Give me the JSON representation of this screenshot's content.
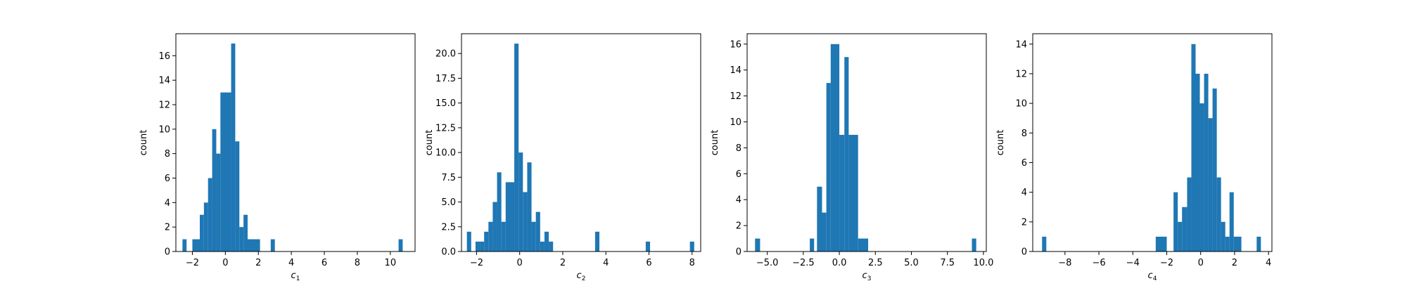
{
  "chart_data": [
    {
      "type": "bar",
      "xlabel_base": "c",
      "xlabel_sub": "1",
      "ylabel": "count",
      "xlim": [
        -3.0,
        11.5
      ],
      "ylim": [
        0,
        17.8
      ],
      "x_ticks": [
        -2,
        0,
        2,
        4,
        6,
        8,
        10
      ],
      "x_tick_labels": [
        "−2",
        "0",
        "2",
        "4",
        "6",
        "8",
        "10"
      ],
      "y_ticks": [
        0,
        2,
        4,
        6,
        8,
        10,
        12,
        14,
        16
      ],
      "y_tick_labels": [
        "0",
        "2",
        "4",
        "6",
        "8",
        "10",
        "12",
        "14",
        "16"
      ],
      "color": "#1f77b4",
      "bins": [
        {
          "x0": -2.6,
          "x1": -2.35,
          "count": 1
        },
        {
          "x0": -2.0,
          "x1": -1.55,
          "count": 1
        },
        {
          "x0": -1.55,
          "x1": -1.3,
          "count": 3
        },
        {
          "x0": -1.3,
          "x1": -1.05,
          "count": 4
        },
        {
          "x0": -1.05,
          "x1": -0.8,
          "count": 6
        },
        {
          "x0": -0.8,
          "x1": -0.55,
          "count": 10
        },
        {
          "x0": -0.55,
          "x1": -0.3,
          "count": 8
        },
        {
          "x0": -0.3,
          "x1": 0.35,
          "count": 13
        },
        {
          "x0": 0.35,
          "x1": 0.6,
          "count": 17
        },
        {
          "x0": 0.6,
          "x1": 0.85,
          "count": 9
        },
        {
          "x0": 0.85,
          "x1": 1.1,
          "count": 2
        },
        {
          "x0": 1.1,
          "x1": 1.35,
          "count": 3
        },
        {
          "x0": 1.35,
          "x1": 2.1,
          "count": 1
        },
        {
          "x0": 2.75,
          "x1": 3.0,
          "count": 1
        },
        {
          "x0": 10.5,
          "x1": 10.75,
          "count": 1
        }
      ]
    },
    {
      "type": "bar",
      "xlabel_base": "c",
      "xlabel_sub": "2",
      "ylabel": "count",
      "xlim": [
        -2.7,
        8.4
      ],
      "ylim": [
        0,
        22
      ],
      "x_ticks": [
        -2,
        0,
        2,
        4,
        6,
        8
      ],
      "x_tick_labels": [
        "−2",
        "0",
        "2",
        "4",
        "6",
        "8"
      ],
      "y_ticks": [
        0,
        2.5,
        5.0,
        7.5,
        10.0,
        12.5,
        15.0,
        17.5,
        20.0
      ],
      "y_tick_labels": [
        "0.0",
        "2.5",
        "5.0",
        "7.5",
        "10.0",
        "12.5",
        "15.0",
        "17.5",
        "20.0"
      ],
      "color": "#1f77b4",
      "bins": [
        {
          "x0": -2.45,
          "x1": -2.25,
          "count": 2
        },
        {
          "x0": -2.05,
          "x1": -1.85,
          "count": 1
        },
        {
          "x0": -1.85,
          "x1": -1.65,
          "count": 1
        },
        {
          "x0": -1.65,
          "x1": -1.45,
          "count": 2
        },
        {
          "x0": -1.45,
          "x1": -1.25,
          "count": 3
        },
        {
          "x0": -1.25,
          "x1": -1.05,
          "count": 5
        },
        {
          "x0": -1.05,
          "x1": -0.85,
          "count": 8
        },
        {
          "x0": -0.85,
          "x1": -0.65,
          "count": 3
        },
        {
          "x0": -0.65,
          "x1": -0.25,
          "count": 7
        },
        {
          "x0": -0.25,
          "x1": -0.05,
          "count": 21
        },
        {
          "x0": -0.05,
          "x1": 0.15,
          "count": 10
        },
        {
          "x0": 0.15,
          "x1": 0.35,
          "count": 6
        },
        {
          "x0": 0.35,
          "x1": 0.55,
          "count": 9
        },
        {
          "x0": 0.55,
          "x1": 0.75,
          "count": 3
        },
        {
          "x0": 0.75,
          "x1": 0.95,
          "count": 4
        },
        {
          "x0": 0.95,
          "x1": 1.15,
          "count": 1
        },
        {
          "x0": 1.15,
          "x1": 1.35,
          "count": 2
        },
        {
          "x0": 1.35,
          "x1": 1.55,
          "count": 1
        },
        {
          "x0": 3.5,
          "x1": 3.7,
          "count": 2
        },
        {
          "x0": 5.85,
          "x1": 6.05,
          "count": 1
        },
        {
          "x0": 7.9,
          "x1": 8.1,
          "count": 1
        }
      ]
    },
    {
      "type": "bar",
      "xlabel_base": "c",
      "xlabel_sub": "3",
      "ylabel": "count",
      "xlim": [
        -6.4,
        10.2
      ],
      "ylim": [
        0,
        16.8
      ],
      "x_ticks": [
        -5.0,
        -2.5,
        0.0,
        2.5,
        5.0,
        7.5,
        10.0
      ],
      "x_tick_labels": [
        "−5.0",
        "−2.5",
        "0.0",
        "2.5",
        "5.0",
        "7.5",
        "10.0"
      ],
      "y_ticks": [
        0,
        2,
        4,
        6,
        8,
        10,
        12,
        14,
        16
      ],
      "y_tick_labels": [
        "0",
        "2",
        "4",
        "6",
        "8",
        "10",
        "12",
        "14",
        "16"
      ],
      "color": "#1f77b4",
      "bins": [
        {
          "x0": -5.85,
          "x1": -5.5,
          "count": 1
        },
        {
          "x0": -2.05,
          "x1": -1.75,
          "count": 1
        },
        {
          "x0": -1.55,
          "x1": -1.2,
          "count": 5
        },
        {
          "x0": -1.2,
          "x1": -0.9,
          "count": 3
        },
        {
          "x0": -0.9,
          "x1": -0.6,
          "count": 13
        },
        {
          "x0": -0.6,
          "x1": 0.0,
          "count": 16
        },
        {
          "x0": 0.0,
          "x1": 0.35,
          "count": 9
        },
        {
          "x0": 0.35,
          "x1": 0.65,
          "count": 15
        },
        {
          "x0": 0.65,
          "x1": 1.3,
          "count": 9
        },
        {
          "x0": 1.3,
          "x1": 2.0,
          "count": 1
        },
        {
          "x0": 9.2,
          "x1": 9.5,
          "count": 1
        }
      ]
    },
    {
      "type": "bar",
      "xlabel_base": "c",
      "xlabel_sub": "4",
      "ylabel": "count",
      "xlim": [
        -9.9,
        4.2
      ],
      "ylim": [
        0,
        14.7
      ],
      "x_ticks": [
        -8,
        -6,
        -4,
        -2,
        0,
        2,
        4
      ],
      "x_tick_labels": [
        "−8",
        "−6",
        "−4",
        "−2",
        "0",
        "2",
        "4"
      ],
      "y_ticks": [
        0,
        2,
        4,
        6,
        8,
        10,
        12,
        14
      ],
      "y_tick_labels": [
        "0",
        "2",
        "4",
        "6",
        "8",
        "10",
        "12",
        "14"
      ],
      "color": "#1f77b4",
      "bins": [
        {
          "x0": -9.35,
          "x1": -9.1,
          "count": 1
        },
        {
          "x0": -2.65,
          "x1": -2.0,
          "count": 1
        },
        {
          "x0": -1.6,
          "x1": -1.35,
          "count": 4
        },
        {
          "x0": -1.35,
          "x1": -1.1,
          "count": 2
        },
        {
          "x0": -1.1,
          "x1": -0.8,
          "count": 3
        },
        {
          "x0": -0.8,
          "x1": -0.55,
          "count": 5
        },
        {
          "x0": -0.55,
          "x1": -0.3,
          "count": 14
        },
        {
          "x0": -0.3,
          "x1": -0.05,
          "count": 12
        },
        {
          "x0": -0.05,
          "x1": 0.2,
          "count": 10
        },
        {
          "x0": 0.2,
          "x1": 0.45,
          "count": 12
        },
        {
          "x0": 0.45,
          "x1": 0.7,
          "count": 9
        },
        {
          "x0": 0.7,
          "x1": 0.95,
          "count": 11
        },
        {
          "x0": 0.95,
          "x1": 1.2,
          "count": 5
        },
        {
          "x0": 1.2,
          "x1": 1.45,
          "count": 2
        },
        {
          "x0": 1.45,
          "x1": 1.7,
          "count": 1
        },
        {
          "x0": 1.7,
          "x1": 1.95,
          "count": 4
        },
        {
          "x0": 1.95,
          "x1": 2.4,
          "count": 1
        },
        {
          "x0": 3.3,
          "x1": 3.55,
          "count": 1
        }
      ]
    }
  ]
}
